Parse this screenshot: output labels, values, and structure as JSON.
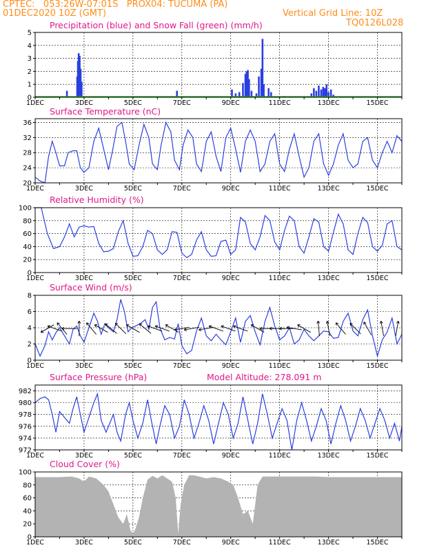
{
  "header": {
    "line1": "CPTEC:   053:26W-07:01S   PROX04: TUCUMA (PA)",
    "line2": "01DEC2020 10Z (GMT)",
    "grid_note": "Vertical Grid Line: 10Z",
    "run_code": "TQ0126L028"
  },
  "colors": {
    "series": "#2a3fe0",
    "snow": "#22aa22",
    "title": "#e0178a",
    "header": "#ff8c1a",
    "cloud": "#b3b3b3",
    "axis": "#000000"
  },
  "day_labels": [
    "1DEC",
    "3DEC",
    "5DEC",
    "7DEC",
    "9DEC",
    "11DEC",
    "13DEC",
    "15DEC"
  ],
  "chart_data": [
    {
      "id": "precip",
      "type": "bar",
      "title": "Precipitation (blue) and Snow Fall (green) (mm/h)",
      "ylim": [
        0,
        5
      ],
      "yticks": [
        0,
        1,
        2,
        3,
        4,
        5
      ],
      "x_start_day": 1,
      "x_end_day": 16,
      "series": [
        {
          "name": "Precipitation",
          "points": [
            [
              2.3,
              0.5
            ],
            [
              2.72,
              1.6
            ],
            [
              2.75,
              2.8
            ],
            [
              2.78,
              3.4
            ],
            [
              2.82,
              3.2
            ],
            [
              2.86,
              2.2
            ],
            [
              2.9,
              1.2
            ],
            [
              6.8,
              0.5
            ],
            [
              9.05,
              0.6
            ],
            [
              9.2,
              0.3
            ],
            [
              9.35,
              0.4
            ],
            [
              9.5,
              1.1
            ],
            [
              9.6,
              1.8
            ],
            [
              9.65,
              2.0
            ],
            [
              9.7,
              2.1
            ],
            [
              9.75,
              1.4
            ],
            [
              9.85,
              0.5
            ],
            [
              10.05,
              0.3
            ],
            [
              10.15,
              1.6
            ],
            [
              10.25,
              2.2
            ],
            [
              10.3,
              4.5
            ],
            [
              10.35,
              1.0
            ],
            [
              10.55,
              0.7
            ],
            [
              10.65,
              0.4
            ],
            [
              11.2,
              0.1
            ],
            [
              12.3,
              0.3
            ],
            [
              12.4,
              0.7
            ],
            [
              12.5,
              0.5
            ],
            [
              12.6,
              0.9
            ],
            [
              12.7,
              0.6
            ],
            [
              12.78,
              0.8
            ],
            [
              12.85,
              0.7
            ],
            [
              12.92,
              1.0
            ],
            [
              13.0,
              0.4
            ],
            [
              13.1,
              0.6
            ],
            [
              13.2,
              0.2
            ]
          ]
        },
        {
          "name": "Snow Fall",
          "points": []
        }
      ]
    },
    {
      "id": "temp",
      "type": "line",
      "title": "Surface Temperature (nC)",
      "ylim": [
        20,
        37
      ],
      "yticks": [
        20,
        24,
        28,
        32,
        36
      ],
      "x": [
        1.0,
        1.2,
        1.4,
        1.55,
        1.7,
        1.85,
        2.0,
        2.2,
        2.35,
        2.55,
        2.7,
        2.85,
        3.0,
        3.2,
        3.4,
        3.6,
        3.8,
        4.0,
        4.15,
        4.35,
        4.55,
        4.7,
        4.85,
        5.05,
        5.25,
        5.45,
        5.65,
        5.8,
        6.0,
        6.15,
        6.35,
        6.55,
        6.7,
        6.9,
        7.05,
        7.25,
        7.45,
        7.6,
        7.8,
        8.0,
        8.2,
        8.4,
        8.6,
        8.8,
        9.0,
        9.2,
        9.4,
        9.6,
        9.8,
        10.0,
        10.2,
        10.4,
        10.6,
        10.8,
        11.0,
        11.2,
        11.4,
        11.6,
        11.8,
        12.0,
        12.2,
        12.4,
        12.6,
        12.8,
        13.0,
        13.2,
        13.4,
        13.6,
        13.8,
        14.0,
        14.2,
        14.4,
        14.6,
        14.8,
        15.0,
        15.2,
        15.4,
        15.6,
        15.8,
        16.0
      ],
      "y": [
        21.5,
        20.5,
        20.0,
        27.0,
        31.0,
        28.0,
        24.5,
        24.5,
        28.0,
        28.5,
        28.5,
        24.0,
        22.8,
        24.0,
        31.0,
        34.5,
        29.0,
        23.5,
        28.0,
        35.0,
        36.0,
        31.0,
        25.0,
        23.5,
        30.0,
        35.5,
        32.0,
        25.0,
        23.5,
        30.0,
        36.0,
        33.5,
        26.0,
        23.5,
        30.0,
        34.0,
        32.0,
        25.0,
        23.0,
        31.0,
        33.5,
        27.0,
        23.0,
        32.0,
        34.5,
        29.0,
        22.8,
        31.0,
        34.0,
        31.0,
        23.0,
        25.0,
        31.0,
        33.0,
        25.0,
        23.0,
        29.0,
        33.0,
        27.0,
        21.5,
        24.0,
        31.0,
        33.0,
        25.0,
        22.0,
        25.0,
        30.0,
        33.0,
        26.0,
        24.0,
        25.0,
        31.0,
        32.0,
        26.0,
        24.0,
        28.0,
        31.0,
        28.0,
        32.5,
        31.0
      ]
    },
    {
      "id": "rh",
      "type": "line",
      "title": "Relative Humidity (%)",
      "ylim": [
        0,
        100
      ],
      "yticks": [
        0,
        20,
        40,
        60,
        80,
        100
      ],
      "x": [
        1.0,
        1.25,
        1.5,
        1.75,
        2.0,
        2.2,
        2.4,
        2.6,
        2.8,
        3.0,
        3.2,
        3.4,
        3.6,
        3.8,
        4.0,
        4.2,
        4.4,
        4.6,
        4.8,
        5.0,
        5.2,
        5.4,
        5.6,
        5.8,
        6.0,
        6.2,
        6.4,
        6.6,
        6.8,
        7.0,
        7.2,
        7.4,
        7.6,
        7.8,
        8.0,
        8.2,
        8.4,
        8.6,
        8.8,
        9.0,
        9.2,
        9.4,
        9.6,
        9.8,
        10.0,
        10.2,
        10.4,
        10.6,
        10.8,
        11.0,
        11.2,
        11.4,
        11.6,
        11.8,
        12.0,
        12.2,
        12.4,
        12.6,
        12.8,
        13.0,
        13.2,
        13.4,
        13.6,
        13.8,
        14.0,
        14.2,
        14.4,
        14.6,
        14.8,
        15.0,
        15.2,
        15.4,
        15.6,
        15.8,
        16.0
      ],
      "y": [
        100,
        100,
        60,
        37,
        40,
        55,
        75,
        55,
        70,
        72,
        70,
        71,
        45,
        32,
        33,
        37,
        63,
        80,
        45,
        25,
        26,
        40,
        65,
        60,
        35,
        28,
        35,
        63,
        62,
        30,
        23,
        28,
        50,
        63,
        35,
        25,
        26,
        48,
        50,
        28,
        35,
        85,
        78,
        45,
        35,
        55,
        88,
        80,
        47,
        35,
        65,
        87,
        80,
        40,
        30,
        55,
        83,
        78,
        40,
        33,
        62,
        90,
        75,
        35,
        28,
        60,
        85,
        77,
        40,
        33,
        42,
        75,
        80,
        40,
        35
      ]
    },
    {
      "id": "wind",
      "type": "line",
      "title": "Surface Wind (m/s)",
      "ylim": [
        0,
        8
      ],
      "yticks": [
        0,
        2,
        4,
        6,
        8
      ],
      "x": [
        1.0,
        1.2,
        1.4,
        1.55,
        1.7,
        1.85,
        2.0,
        2.2,
        2.4,
        2.55,
        2.7,
        2.85,
        3.0,
        3.2,
        3.4,
        3.55,
        3.7,
        3.85,
        4.0,
        4.2,
        4.35,
        4.5,
        4.65,
        4.8,
        4.95,
        5.1,
        5.3,
        5.5,
        5.65,
        5.8,
        5.95,
        6.1,
        6.3,
        6.5,
        6.7,
        6.85,
        7.0,
        7.2,
        7.4,
        7.6,
        7.8,
        8.0,
        8.2,
        8.4,
        8.6,
        8.8,
        9.0,
        9.2,
        9.4,
        9.6,
        9.8,
        10.0,
        10.2,
        10.4,
        10.6,
        10.8,
        11.0,
        11.2,
        11.4,
        11.6,
        11.8,
        12.0,
        12.2,
        12.4,
        12.6,
        12.8,
        13.0,
        13.2,
        13.4,
        13.6,
        13.8,
        14.0,
        14.2,
        14.4,
        14.6,
        14.8,
        15.0,
        15.2,
        15.4,
        15.6,
        15.8,
        16.0
      ],
      "y": [
        2.0,
        0.5,
        1.8,
        3.5,
        2.5,
        3.4,
        4.0,
        3.0,
        2.0,
        3.8,
        4.2,
        3.0,
        2.2,
        4.0,
        5.8,
        4.8,
        3.2,
        4.5,
        4.0,
        3.5,
        5.0,
        7.5,
        6.0,
        3.5,
        4.0,
        4.2,
        4.5,
        5.0,
        3.8,
        6.5,
        7.2,
        4.0,
        2.5,
        2.8,
        2.6,
        4.5,
        1.8,
        0.8,
        1.2,
        3.6,
        5.2,
        3.0,
        2.4,
        3.2,
        2.5,
        1.9,
        3.5,
        5.2,
        2.2,
        4.8,
        5.5,
        3.5,
        1.9,
        4.8,
        6.5,
        4.2,
        2.5,
        3.0,
        4.0,
        2.0,
        2.5,
        3.8,
        3.0,
        2.4,
        3.0,
        3.6,
        3.5,
        2.7,
        2.8,
        4.8,
        5.8,
        3.6,
        3.0,
        5.0,
        6.2,
        3.0,
        0.5,
        2.5,
        3.5,
        5.2,
        2.0,
        3.2
      ],
      "barbs": [
        [
          1.5,
          3.9,
          150
        ],
        [
          1.8,
          3.9,
          200
        ],
        [
          2.1,
          3.9,
          230
        ],
        [
          2.4,
          3.9,
          180
        ],
        [
          2.8,
          3.9,
          270
        ],
        [
          3.3,
          3.9,
          230
        ],
        [
          3.7,
          3.9,
          210
        ],
        [
          4.1,
          3.9,
          220
        ],
        [
          4.5,
          3.9,
          225
        ],
        [
          5.0,
          3.9,
          210
        ],
        [
          5.5,
          3.9,
          220
        ],
        [
          5.9,
          3.9,
          200
        ],
        [
          6.2,
          3.9,
          200
        ],
        [
          6.6,
          3.9,
          210
        ],
        [
          7.0,
          3.9,
          170
        ],
        [
          7.4,
          3.9,
          170
        ],
        [
          8.0,
          3.9,
          170
        ],
        [
          8.4,
          3.9,
          200
        ],
        [
          8.9,
          3.9,
          200
        ],
        [
          9.4,
          3.9,
          200
        ],
        [
          10.1,
          3.9,
          210
        ],
        [
          10.5,
          3.9,
          180
        ],
        [
          10.9,
          3.9,
          180
        ],
        [
          11.3,
          3.9,
          180
        ],
        [
          11.6,
          3.9,
          190
        ],
        [
          12.0,
          3.9,
          210
        ],
        [
          12.6,
          3.9,
          265
        ],
        [
          13.0,
          3.9,
          260
        ],
        [
          13.5,
          3.9,
          230
        ],
        [
          14.1,
          3.9,
          225
        ],
        [
          14.6,
          3.9,
          240
        ],
        [
          15.2,
          3.9,
          260
        ],
        [
          15.8,
          3.9,
          280
        ]
      ]
    },
    {
      "id": "pres",
      "type": "line",
      "title": "Surface Pressure (hPa)",
      "altitude": "Model Altitude: 278.091 m",
      "ylim": [
        972,
        983
      ],
      "yticks": [
        972,
        974,
        976,
        978,
        980,
        982
      ],
      "x": [
        1.0,
        1.2,
        1.4,
        1.55,
        1.7,
        1.85,
        2.0,
        2.2,
        2.4,
        2.55,
        2.7,
        2.85,
        3.0,
        3.2,
        3.4,
        3.55,
        3.7,
        3.9,
        4.05,
        4.2,
        4.35,
        4.5,
        4.7,
        4.85,
        5.0,
        5.2,
        5.4,
        5.6,
        5.75,
        5.95,
        6.1,
        6.3,
        6.5,
        6.7,
        6.9,
        7.1,
        7.3,
        7.5,
        7.7,
        7.9,
        8.1,
        8.3,
        8.5,
        8.7,
        8.9,
        9.1,
        9.3,
        9.5,
        9.7,
        9.9,
        10.1,
        10.3,
        10.5,
        10.7,
        10.9,
        11.1,
        11.3,
        11.5,
        11.7,
        11.9,
        12.1,
        12.3,
        12.5,
        12.7,
        12.9,
        13.1,
        13.3,
        13.5,
        13.7,
        13.9,
        14.1,
        14.3,
        14.5,
        14.7,
        14.9,
        15.1,
        15.3,
        15.5,
        15.7,
        15.9,
        16.0
      ],
      "y": [
        980.0,
        980.7,
        981.0,
        980.5,
        978.0,
        975.0,
        978.5,
        977.5,
        976.5,
        979.0,
        981.0,
        978.0,
        975.0,
        977.5,
        980.0,
        981.5,
        977.0,
        975.0,
        976.5,
        978.0,
        975.0,
        973.5,
        978.0,
        980.0,
        977.0,
        974.0,
        976.5,
        980.5,
        977.0,
        973.0,
        976.0,
        979.5,
        978.0,
        974.0,
        976.0,
        980.5,
        978.0,
        974.0,
        976.5,
        979.5,
        977.0,
        973.0,
        976.5,
        980.0,
        978.0,
        974.0,
        976.5,
        981.0,
        977.0,
        973.0,
        976.5,
        981.5,
        978.0,
        974.0,
        976.5,
        979.0,
        977.0,
        972.0,
        977.0,
        980.0,
        977.0,
        973.5,
        976.0,
        979.0,
        977.0,
        973.0,
        976.5,
        979.5,
        977.0,
        973.5,
        976.0,
        979.0,
        977.0,
        974.0,
        976.5,
        979.0,
        977.0,
        974.0,
        976.5,
        973.5,
        976.0
      ]
    },
    {
      "id": "cloud",
      "type": "area",
      "title": "Cloud Cover (%)",
      "ylim": [
        0,
        100
      ],
      "yticks": [
        0,
        20,
        40,
        60,
        80,
        100
      ],
      "x": [
        1.0,
        1.5,
        2.0,
        2.5,
        2.8,
        3.0,
        3.2,
        3.5,
        3.8,
        4.0,
        4.2,
        4.4,
        4.6,
        4.75,
        4.9,
        5.0,
        5.1,
        5.25,
        5.4,
        5.6,
        5.8,
        6.0,
        6.2,
        6.4,
        6.6,
        6.75,
        6.85,
        6.95,
        7.1,
        7.3,
        7.5,
        7.8,
        8.0,
        8.3,
        8.6,
        8.9,
        9.1,
        9.3,
        9.5,
        9.7,
        9.9,
        10.1,
        10.3,
        10.6,
        11.0,
        11.5,
        12.0,
        12.5,
        13.0,
        13.5,
        14.0,
        14.5,
        15.0,
        15.5,
        16.0
      ],
      "y": [
        92,
        92,
        92,
        93,
        90,
        85,
        93,
        90,
        80,
        70,
        50,
        30,
        20,
        35,
        10,
        5,
        12,
        30,
        60,
        88,
        94,
        90,
        95,
        90,
        85,
        60,
        5,
        50,
        80,
        95,
        95,
        92,
        90,
        92,
        90,
        85,
        80,
        60,
        35,
        40,
        20,
        80,
        93,
        93,
        93,
        93,
        93,
        93,
        92,
        92,
        92,
        92,
        92,
        92,
        92
      ]
    }
  ]
}
